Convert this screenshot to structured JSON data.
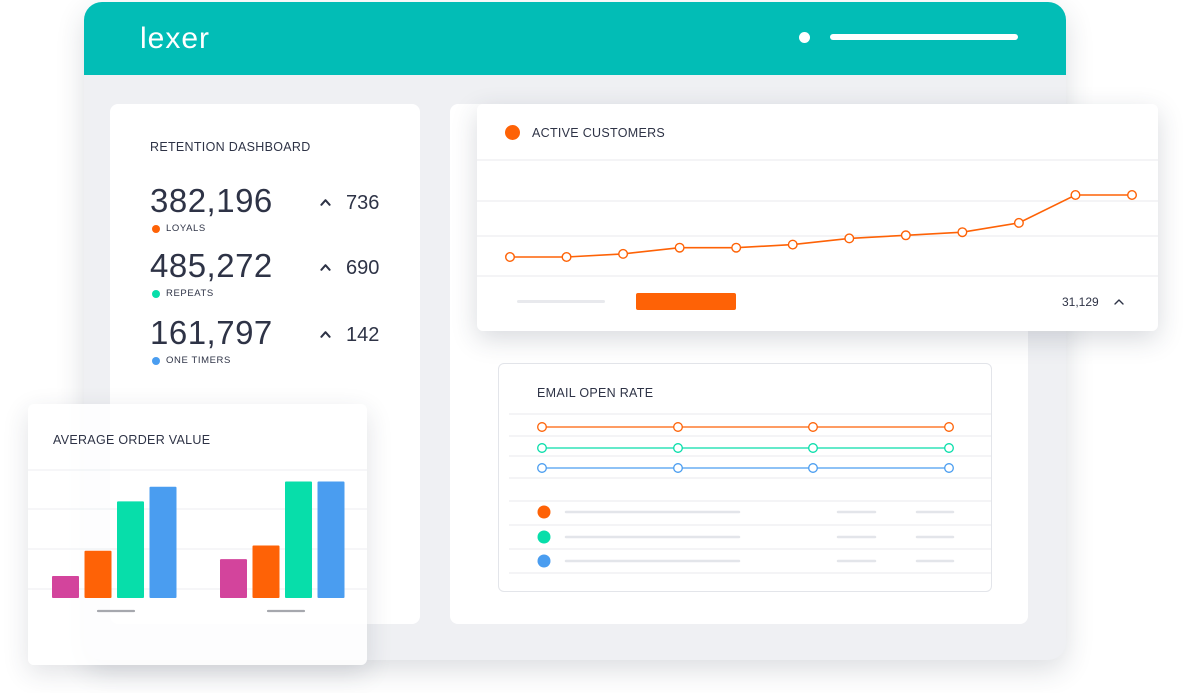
{
  "app": {
    "logo_text": "lexer"
  },
  "retention": {
    "title": "RETENTION DASHBOARD",
    "metrics": [
      {
        "value": "382,196",
        "delta": "736",
        "label": "LOYALS",
        "color": "#fe6206"
      },
      {
        "value": "485,272",
        "delta": "690",
        "label": "REPEATS",
        "color": "#07deaa"
      },
      {
        "value": "161,797",
        "delta": "142",
        "label": "ONE TIMERS",
        "color": "#4a9df0"
      }
    ]
  },
  "active_customers": {
    "title": "ACTIVE CUSTOMERS",
    "accent": "#fe6206",
    "footer_value": "31,129",
    "chart_data": {
      "type": "line",
      "x": [
        1,
        2,
        3,
        4,
        5,
        6,
        7,
        8,
        9,
        10,
        11,
        12
      ],
      "series": [
        {
          "values": [
            10,
            10,
            11,
            13,
            13,
            14,
            16,
            17,
            18,
            21,
            30,
            30
          ]
        }
      ],
      "ylim": [
        0,
        40
      ],
      "grid": true
    }
  },
  "email_open_rate": {
    "title": "EMAIL OPEN RATE",
    "chart_data": {
      "type": "line",
      "x": [
        1,
        2,
        3,
        4
      ],
      "series": [
        {
          "values": [
            3,
            3,
            3,
            3
          ],
          "color": "#fe6206"
        },
        {
          "values": [
            2,
            2,
            2,
            2
          ],
          "color": "#07deaa"
        },
        {
          "values": [
            1,
            1,
            1,
            1
          ],
          "color": "#4a9df0"
        }
      ],
      "grid": true
    },
    "legend_colors": [
      "#fe6206",
      "#07deaa",
      "#4a9df0"
    ]
  },
  "average_order_value": {
    "title": "AVERAGE ORDER VALUE",
    "chart_data": {
      "type": "bar",
      "categories": [
        "",
        ""
      ],
      "series": [
        {
          "color": "#d3449c",
          "values": [
            21,
            37
          ]
        },
        {
          "color": "#fe6206",
          "values": [
            45,
            50
          ]
        },
        {
          "color": "#07deaa",
          "values": [
            92,
            111
          ]
        },
        {
          "color": "#4a9df0",
          "values": [
            106,
            111
          ]
        }
      ],
      "ylim": [
        0,
        120
      ]
    }
  }
}
